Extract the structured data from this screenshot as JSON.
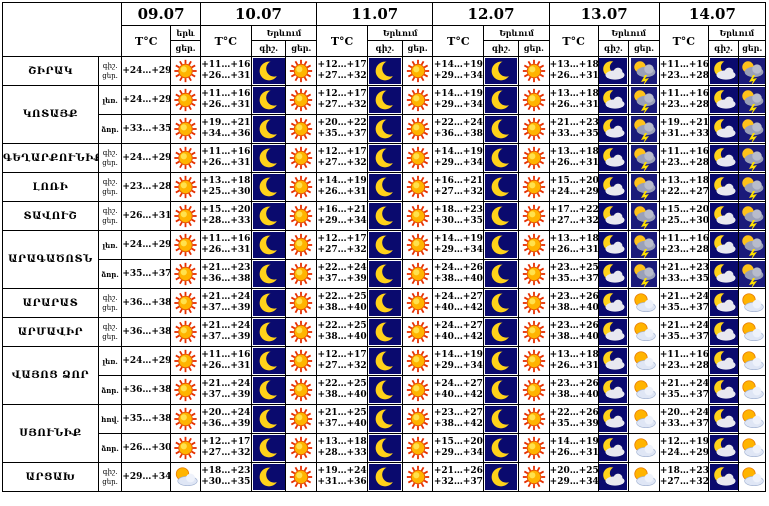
{
  "dates": [
    "09.07",
    "10.07",
    "11.07",
    "12.07",
    "13.07",
    "14.07"
  ],
  "labels": {
    "temp": "T°C",
    "day_short": "ցեր.",
    "day_short_09": "ցեր.",
    "night_short": "գիշ.",
    "night_day_09": "երև",
    "yerevan": "Երևում",
    "gish_gcer": "գիշ. ցեր.",
    "lower": "ԼԵռ.",
    "valley": "ձոր."
  },
  "regions": [
    {
      "name": "ՇԻՐԱԿ",
      "rows": [
        {
          "sub": "",
          "d09": "+24…+29",
          "i09": "sun",
          "t": [
            "+11…+16\n+26…+31",
            "+12…+17\n+27…+32",
            "+14…+19\n+29…+34",
            "+13…+18\n+26…+31",
            "+11…+16\n+23…+28"
          ],
          "n": [
            "moon",
            "moon",
            "moon",
            "cloud-moon",
            "cloud-moon"
          ],
          "d": [
            "sun",
            "sun",
            "sun",
            "storm",
            "storm"
          ]
        }
      ]
    },
    {
      "name": "ԿՈՏԱՅՔ",
      "rows": [
        {
          "sub": "լեռ.",
          "d09": "+24…+29",
          "i09": "sun",
          "t": [
            "+11…+16\n+26…+31",
            "+12…+17\n+27…+32",
            "+14…+19\n+29…+34",
            "+13…+18\n+26…+31",
            "+11…+16\n+23…+28"
          ],
          "n": [
            "moon",
            "moon",
            "moon",
            "cloud-moon",
            "cloud-moon"
          ],
          "d": [
            "sun",
            "sun",
            "sun",
            "storm",
            "storm"
          ]
        },
        {
          "sub": "ձոր.",
          "d09": "+33…+35",
          "i09": "sun",
          "t": [
            "+19…+21\n+34…+36",
            "+20…+22\n+35…+37",
            "+22…+24\n+36…+38",
            "+21…+23\n+33…+35",
            "+19…+21\n+31…+33"
          ],
          "n": [
            "moon",
            "moon",
            "moon",
            "cloud-moon",
            "cloud-moon"
          ],
          "d": [
            "sun",
            "sun",
            "sun",
            "storm",
            "storm"
          ]
        }
      ]
    },
    {
      "name": "ԳԵՂԱՐՔՈՒՆԻՔ",
      "rows": [
        {
          "sub": "",
          "d09": "+24…+29",
          "i09": "sun",
          "t": [
            "+11…+16\n+26…+31",
            "+12…+17\n+27…+32",
            "+14…+19\n+29…+34",
            "+13…+18\n+26…+31",
            "+11…+16\n+23…+28"
          ],
          "n": [
            "moon",
            "moon",
            "moon",
            "cloud-moon",
            "cloud-moon"
          ],
          "d": [
            "sun",
            "sun",
            "sun",
            "storm",
            "storm"
          ]
        }
      ]
    },
    {
      "name": "ԼՈՌԻ",
      "rows": [
        {
          "sub": "",
          "d09": "+23…+28",
          "i09": "sun",
          "t": [
            "+13…+18\n+25…+30",
            "+14…+19\n+26…+31",
            "+16…+21\n+27…+32",
            "+15…+20\n+24…+29",
            "+13…+18\n+22…+27"
          ],
          "n": [
            "moon",
            "moon",
            "moon",
            "cloud-moon",
            "cloud-moon"
          ],
          "d": [
            "sun",
            "sun",
            "sun",
            "storm",
            "storm"
          ]
        }
      ]
    },
    {
      "name": "ՏԱՎՈՒՇ",
      "rows": [
        {
          "sub": "",
          "d09": "+26…+31",
          "i09": "sun",
          "t": [
            "+15…+20\n+28…+33",
            "+16…+21\n+29…+34",
            "+18…+23\n+30…+35",
            "+17…+22\n+27…+32",
            "+15…+20\n+25…+30"
          ],
          "n": [
            "moon",
            "moon",
            "moon",
            "cloud-moon",
            "cloud-moon"
          ],
          "d": [
            "sun",
            "sun",
            "sun",
            "storm",
            "storm"
          ]
        }
      ]
    },
    {
      "name": "ԱՐԱԳԱԾՈՏՆ",
      "rows": [
        {
          "sub": "լեռ.",
          "d09": "+24…+29",
          "i09": "sun",
          "t": [
            "+11…+16\n+26…+31",
            "+12…+17\n+27…+32",
            "+14…+19\n+29…+34",
            "+13…+18\n+26…+31",
            "+11…+16\n+23…+28"
          ],
          "n": [
            "moon",
            "moon",
            "moon",
            "cloud-moon",
            "cloud-moon"
          ],
          "d": [
            "sun",
            "sun",
            "sun",
            "storm",
            "storm"
          ]
        },
        {
          "sub": "ձոր.",
          "d09": "+35…+37",
          "i09": "sun",
          "t": [
            "+21…+23\n+36…+38",
            "+22…+24\n+37…+39",
            "+24…+26\n+38…+40",
            "+23…+25\n+35…+37",
            "+21…+23\n+33…+35"
          ],
          "n": [
            "moon",
            "moon",
            "moon",
            "cloud-moon",
            "cloud-moon"
          ],
          "d": [
            "sun",
            "sun",
            "sun",
            "storm",
            "storm"
          ]
        }
      ]
    },
    {
      "name": "ԱՐԱՐԱՏ",
      "rows": [
        {
          "sub": "",
          "d09": "+36…+38",
          "i09": "sun",
          "t": [
            "+21…+24\n+37…+39",
            "+22…+25\n+38…+40",
            "+24…+27\n+40…+42",
            "+23…+26\n+38…+40",
            "+21…+24\n+35…+37"
          ],
          "n": [
            "moon",
            "moon",
            "moon",
            "cloud-moon",
            "cloud-moon"
          ],
          "d": [
            "sun",
            "sun",
            "sun",
            "cloud-sun",
            "cloud-sun"
          ]
        }
      ]
    },
    {
      "name": "ԱՐՄԱՎԻՐ",
      "rows": [
        {
          "sub": "",
          "d09": "+36…+38",
          "i09": "sun",
          "t": [
            "+21…+24\n+37…+39",
            "+22…+25\n+38…+40",
            "+24…+27\n+40…+42",
            "+23…+26\n+38…+40",
            "+21…+24\n+35…+37"
          ],
          "n": [
            "moon",
            "moon",
            "moon",
            "cloud-moon",
            "cloud-moon"
          ],
          "d": [
            "sun",
            "sun",
            "sun",
            "cloud-sun",
            "cloud-sun"
          ]
        }
      ]
    },
    {
      "name": "ՎԱՅՈՑ ՁՈՐ",
      "rows": [
        {
          "sub": "լեռ.",
          "d09": "+24…+29",
          "i09": "sun",
          "t": [
            "+11…+16\n+26…+31",
            "+12…+17\n+27…+32",
            "+14…+19\n+29…+34",
            "+13…+18\n+26…+31",
            "+11…+16\n+23…+28"
          ],
          "n": [
            "moon",
            "moon",
            "moon",
            "cloud-moon",
            "cloud-moon"
          ],
          "d": [
            "sun",
            "sun",
            "sun",
            "cloud-sun",
            "cloud-sun"
          ]
        },
        {
          "sub": "ձոր.",
          "d09": "+36…+38",
          "i09": "sun",
          "t": [
            "+21…+24\n+37…+39",
            "+22…+25\n+38…+40",
            "+24…+27\n+40…+42",
            "+23…+26\n+38…+40",
            "+21…+24\n+35…+37"
          ],
          "n": [
            "moon",
            "moon",
            "moon",
            "cloud-moon",
            "cloud-moon"
          ],
          "d": [
            "sun",
            "sun",
            "sun",
            "cloud-sun",
            "cloud-sun"
          ]
        }
      ]
    },
    {
      "name": "ՍՅՈՒՆԻՔ",
      "rows": [
        {
          "sub": "հով.",
          "d09": "+35…+38",
          "i09": "sun",
          "t": [
            "+20…+24\n+36…+39",
            "+21…+25\n+37…+40",
            "+23…+27\n+38…+42",
            "+22…+26\n+35…+39",
            "+20…+24\n+33…+37"
          ],
          "n": [
            "moon",
            "moon",
            "moon",
            "cloud-moon",
            "cloud-moon"
          ],
          "d": [
            "sun",
            "sun",
            "sun",
            "cloud-sun",
            "cloud-sun"
          ]
        },
        {
          "sub": "ձոր.",
          "d09": "+26…+30",
          "i09": "sun",
          "t": [
            "+12…+17\n+27…+32",
            "+13…+18\n+28…+33",
            "+15…+20\n+29…+34",
            "+14…+19\n+26…+31",
            "+12…+19\n+24…+29"
          ],
          "n": [
            "moon",
            "moon",
            "moon",
            "cloud-moon",
            "cloud-moon"
          ],
          "d": [
            "sun",
            "sun",
            "sun",
            "cloud-sun",
            "cloud-sun"
          ]
        }
      ]
    },
    {
      "name": "ԱՐՑԱԽ",
      "rows": [
        {
          "sub": "",
          "d09": "+29…+34",
          "i09": "cloud-sun",
          "t": [
            "+18…+23\n+30…+35",
            "+19…+24\n+31…+36",
            "+21…+26\n+32…+37",
            "+20…+25\n+29…+34",
            "+18…+23\n+27…+32"
          ],
          "n": [
            "moon",
            "moon",
            "moon",
            "cloud-moon",
            "cloud-moon"
          ],
          "d": [
            "sun",
            "sun",
            "sun",
            "cloud-sun",
            "cloud-sun"
          ]
        }
      ]
    }
  ]
}
